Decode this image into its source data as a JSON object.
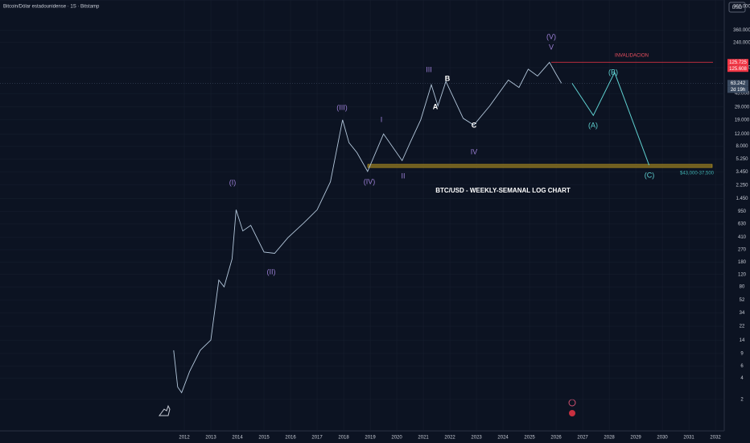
{
  "header": {
    "symbol": "Bitcoin/Dólar estadounidense · 1S · Bitstamp",
    "currency": "USD"
  },
  "chart_data": {
    "type": "line",
    "log_scale": true,
    "grid": true,
    "xlim": [
      2005.06,
      2032.33
    ],
    "ylim": [
      0.713,
      965000
    ],
    "xticks": [
      2012,
      2013,
      2014,
      2015,
      2016,
      2017,
      2018,
      2019,
      2020,
      2021,
      2022,
      2023,
      2024,
      2025,
      2026,
      2027,
      2028,
      2029,
      2030,
      2031,
      2032
    ],
    "yticks": [
      {
        "value": 960000,
        "label": "960.000"
      },
      {
        "value": 360000,
        "label": "360.000"
      },
      {
        "value": 240000,
        "label": "240.000"
      },
      {
        "value": 105000,
        "label": "105.000"
      },
      {
        "value": 45000,
        "label": "45.000"
      },
      {
        "value": 29000,
        "label": "29.000"
      },
      {
        "value": 19000,
        "label": "19.000"
      },
      {
        "value": 12000,
        "label": "12.000"
      },
      {
        "value": 8000,
        "label": "8.000"
      },
      {
        "value": 5250,
        "label": "5.250"
      },
      {
        "value": 3450,
        "label": "3.450"
      },
      {
        "value": 2250,
        "label": "2.250"
      },
      {
        "value": 1450,
        "label": "1.450"
      },
      950,
      630,
      410,
      270,
      180,
      120,
      80,
      52,
      34,
      22,
      14,
      9,
      6,
      4,
      2
    ],
    "series": [
      {
        "color": "#b4c8dc",
        "x": [
          2011.6,
          2011.75,
          2011.9,
          2012.2,
          2012.6,
          2013.0,
          2013.3,
          2013.5,
          2013.8,
          2013.95,
          2014.2,
          2014.5,
          2015.0,
          2015.4,
          2015.9,
          2016.5,
          2017.0,
          2017.5,
          2017.96,
          2018.2,
          2018.5,
          2018.9,
          2019.5,
          2020.2,
          2020.5,
          2020.9,
          2021.3,
          2021.55,
          2021.85,
          2022.5,
          2022.9,
          2023.5,
          2024.2,
          2024.6,
          2024.95,
          2025.3,
          2025.75,
          2026.0,
          2026.2
        ],
        "values": [
          10,
          3,
          2.5,
          5,
          10,
          14,
          100,
          80,
          200,
          1000,
          500,
          600,
          250,
          240,
          400,
          650,
          1000,
          2500,
          19000,
          9000,
          6500,
          3500,
          12000,
          5000,
          9000,
          19000,
          60000,
          30000,
          67000,
          20000,
          16000,
          30000,
          70000,
          55000,
          100000,
          80000,
          125000,
          85000,
          63242
        ]
      },
      {
        "color": "#5fd0d0",
        "x": [
          2026.6,
          2027.4,
          2028.2,
          2029.5
        ],
        "values": [
          63000,
          22000,
          90000,
          4300
        ]
      }
    ],
    "price_labels": [
      {
        "value": 125725,
        "label": "125.725",
        "color": "#f23645"
      },
      {
        "value": 125608,
        "label": "125.608",
        "color": "#f23645"
      },
      {
        "value": 63242,
        "label": "63.242",
        "color": "#3a4a60"
      }
    ],
    "countdown": "2d 19h",
    "annotations": [
      {
        "text": "(V)",
        "color": "#9b7fd4"
      },
      {
        "text": "V",
        "color": "#9b7fd4"
      },
      {
        "text": "INVALIDACION",
        "color": "#f05060"
      },
      {
        "text": "III",
        "color": "#9b7fd4"
      },
      {
        "text": "B",
        "color": "#ffffff"
      },
      {
        "text": "A",
        "color": "#ffffff"
      },
      {
        "text": "C",
        "color": "#ffffff"
      },
      {
        "text": "(A)",
        "color": "#5fd0d0"
      },
      {
        "text": "(B)",
        "color": "#5fd0d0"
      },
      {
        "text": "(C)",
        "color": "#5fd0d0"
      },
      {
        "text": "(III)",
        "color": "#9b7fd4"
      },
      {
        "text": "I",
        "color": "#9b7fd4"
      },
      {
        "text": "IV",
        "color": "#9b7fd4"
      },
      {
        "text": "II",
        "color": "#9b7fd4"
      },
      {
        "text": "(IV)",
        "color": "#9b7fd4"
      },
      {
        "text": "(I)",
        "color": "#9b7fd4"
      },
      {
        "text": "(II)",
        "color": "#9b7fd4"
      },
      {
        "text": "BTC/USD - WEEKLY-SEMANAL LOG CHART",
        "color": "#ffffff"
      },
      {
        "text": "$43,000-37,500",
        "color": "#3fb0b0"
      }
    ]
  }
}
